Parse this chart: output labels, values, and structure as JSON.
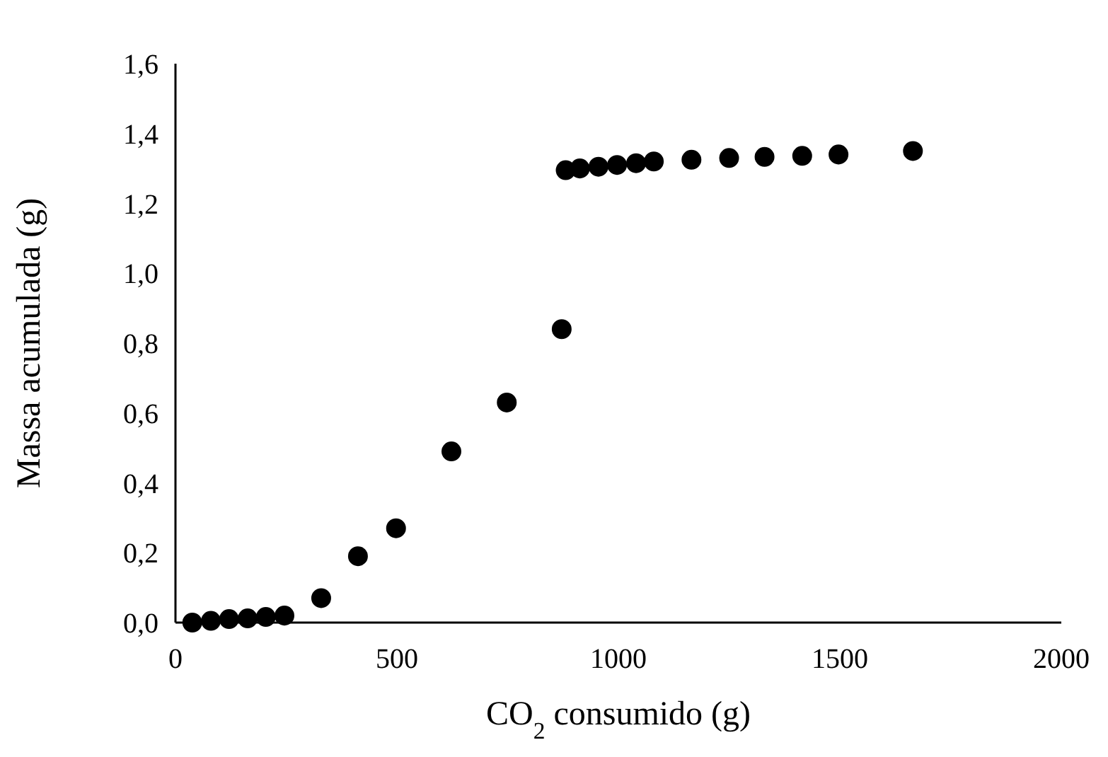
{
  "chart_data": {
    "type": "scatter",
    "xlabel": "CO$_{2}$ consumido (g)",
    "ylabel": "Massa acumulada (g)",
    "x": [
      38,
      80,
      121,
      163,
      204,
      246,
      329,
      412,
      498,
      623,
      748,
      872,
      881,
      913,
      955,
      997,
      1040,
      1080,
      1165,
      1250,
      1330,
      1415,
      1497,
      1665
    ],
    "series": [
      {
        "color": "#000000",
        "values": [
          0.0,
          0.005,
          0.01,
          0.012,
          0.016,
          0.02,
          0.07,
          0.19,
          0.27,
          0.49,
          0.63,
          0.84,
          1.295,
          1.3,
          1.305,
          1.31,
          1.315,
          1.32,
          1.325,
          1.33,
          1.333,
          1.336,
          1.34,
          1.35
        ]
      }
    ],
    "xlim": [
      0,
      2000
    ],
    "xticks": [
      0,
      500,
      1000,
      1500,
      2000
    ],
    "ylim": [
      0,
      1.6
    ],
    "yticks": [
      {
        "value": 0,
        "label": "0,0"
      },
      {
        "value": 0.2,
        "label": "0,2"
      },
      {
        "value": 0.4,
        "label": "0,4"
      },
      {
        "value": 0.6,
        "label": "0,6"
      },
      {
        "value": 0.8,
        "label": "0,8"
      },
      {
        "value": 1.0,
        "label": "1,0"
      },
      {
        "value": 1.2,
        "label": "1,2"
      },
      {
        "value": 1.4,
        "label": "1,4"
      },
      {
        "value": 1.6,
        "label": "1,6"
      }
    ],
    "grid": false,
    "marker": "circle"
  }
}
